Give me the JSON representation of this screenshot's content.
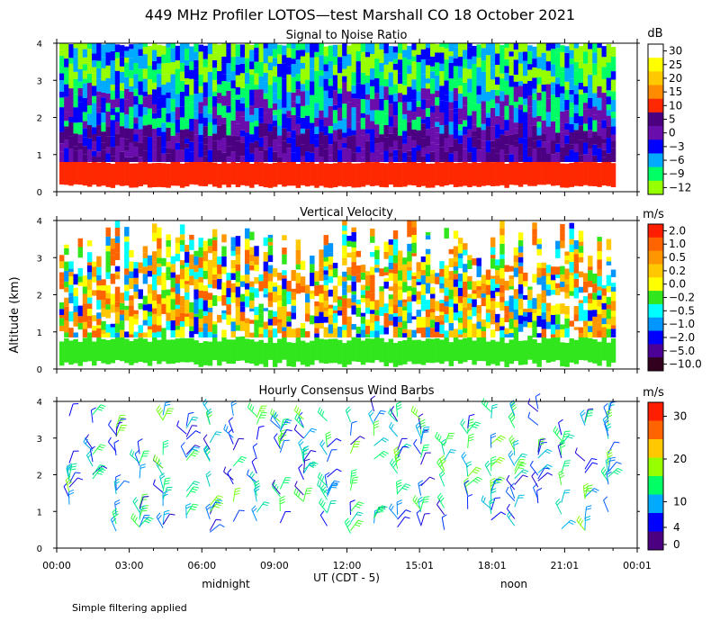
{
  "figure": {
    "title": "449 MHz Profiler LOTOS—test Marshall CO 18 October 2021",
    "ylabel": "Altitude (km)",
    "xlabel": "UT  (CDT - 5)",
    "midnight_label": "midnight",
    "noon_label": "noon",
    "footnote": "Simple filtering applied",
    "x_ticks": [
      "00:00",
      "03:00",
      "06:00",
      "09:00",
      "12:00",
      "15:01",
      "18:01",
      "21:01",
      "00:01"
    ],
    "y_ticks": [
      "0",
      "1",
      "2",
      "3",
      "4"
    ]
  },
  "chart_data": [
    {
      "type": "heatmap",
      "title": "Signal to Noise Ratio",
      "units": "dB",
      "ylim": [
        0,
        4
      ],
      "xlim_hours": [
        0,
        24
      ],
      "colorbar": {
        "labels": [
          "30",
          "25",
          "20",
          "15",
          "10",
          "5",
          "0",
          "−3",
          "−6",
          "−9",
          "−12"
        ],
        "colors": [
          "#ffffff",
          "#ffff00",
          "#ffc800",
          "#ff8c00",
          "#ff2800",
          "#4b0082",
          "#6a0dad",
          "#0000ff",
          "#00aaff",
          "#00ff64",
          "#96ff00"
        ]
      }
    },
    {
      "type": "heatmap",
      "title": "Vertical Velocity",
      "units": "m/s",
      "ylim": [
        0,
        4
      ],
      "xlim_hours": [
        0,
        24
      ],
      "colorbar": {
        "labels": [
          "2.0",
          "1.0",
          "0.5",
          "0.2",
          "0.0",
          "−0.2",
          "−0.5",
          "−1.0",
          "−2.0",
          "−5.0",
          "−10.0"
        ],
        "colors": [
          "#ff1e00",
          "#ff6400",
          "#ff9600",
          "#ffc800",
          "#ffff00",
          "#32e61e",
          "#00ffff",
          "#0096ff",
          "#0000ff",
          "#4b0096",
          "#32001e"
        ]
      }
    },
    {
      "type": "wind_barbs",
      "title": "Hourly Consensus Wind Barbs",
      "units": "m/s",
      "ylim": [
        0,
        4
      ],
      "xlim_hours": [
        0,
        24
      ],
      "colorbar": {
        "labels": [
          "30",
          "20",
          "10",
          "4",
          "0"
        ],
        "stops": [
          30,
          20,
          10,
          4,
          0
        ],
        "colors": [
          "#ff1e00",
          "#ff6400",
          "#ffc800",
          "#96ff00",
          "#00ff64",
          "#00aaff",
          "#0000ff",
          "#4b0082"
        ]
      }
    }
  ]
}
